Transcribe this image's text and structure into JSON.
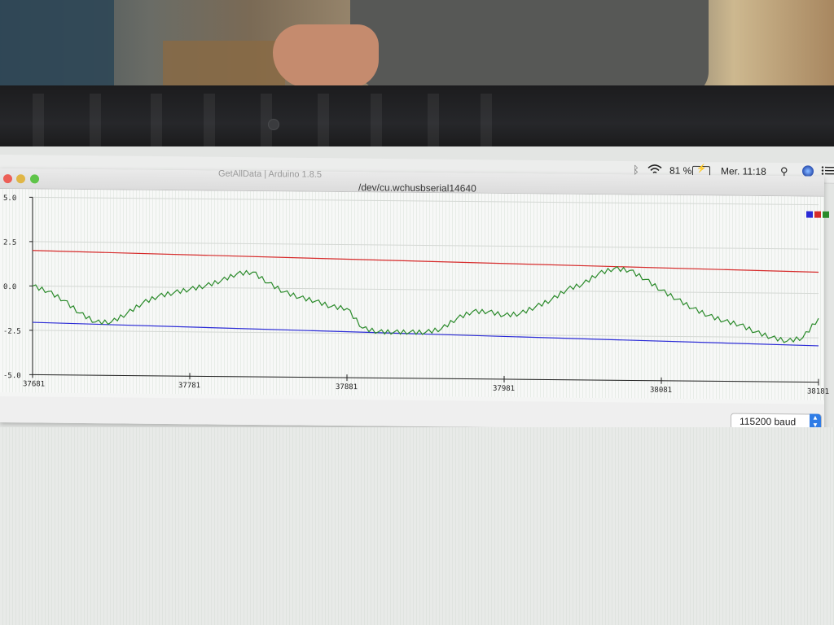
{
  "menubar": {
    "battery_percent": "81 %",
    "clock": "Mer. 11:18"
  },
  "window": {
    "background_title": "GetAllData | Arduino 1.8.5",
    "title": "/dev/cu.wchusbserial14640"
  },
  "baud": {
    "label": "115200 baud"
  },
  "colors": {
    "series_blue": "#2a2ad6",
    "series_red": "#d62a2a",
    "series_green": "#2a8a2a"
  },
  "chart_data": {
    "type": "line",
    "title": "",
    "xlabel": "",
    "ylabel": "",
    "ylim": [
      -5.0,
      5.0
    ],
    "xlim": [
      37681,
      38181
    ],
    "y_ticks": [
      "5.0",
      "2.5",
      "0.0",
      "-2.5",
      "-5.0"
    ],
    "x_ticks": [
      "37681",
      "37781",
      "37881",
      "37981",
      "38081",
      "38181"
    ],
    "grid": true,
    "legend": "top-right",
    "series": [
      {
        "color": "#2a2ad6",
        "x": [
          37681,
          38181
        ],
        "y": [
          -2.05,
          -2.95
        ]
      },
      {
        "color": "#d62a2a",
        "x": [
          37681,
          38181
        ],
        "y": [
          2.0,
          1.2
        ]
      },
      {
        "color": "#2a8a2a",
        "x": [
          37681,
          37691,
          37701,
          37711,
          37721,
          37731,
          37741,
          37751,
          37761,
          37771,
          37781,
          37791,
          37801,
          37811,
          37821,
          37831,
          37841,
          37851,
          37861,
          37871,
          37881,
          37891,
          37901,
          37911,
          37921,
          37931,
          37941,
          37951,
          37961,
          37971,
          37981,
          37991,
          38001,
          38011,
          38021,
          38031,
          38041,
          38051,
          38061,
          38071,
          38081,
          38091,
          38101,
          38111,
          38121,
          38131,
          38141,
          38151,
          38161,
          38171,
          38181
        ],
        "y": [
          0.0,
          -0.3,
          -0.8,
          -1.5,
          -2.0,
          -2.0,
          -1.5,
          -0.9,
          -0.5,
          -0.3,
          -0.1,
          0.1,
          0.4,
          0.8,
          0.9,
          0.3,
          -0.2,
          -0.5,
          -0.7,
          -1.0,
          -1.1,
          -2.2,
          -2.4,
          -2.4,
          -2.4,
          -2.4,
          -2.2,
          -1.6,
          -1.2,
          -1.2,
          -1.4,
          -1.3,
          -0.9,
          -0.5,
          0.1,
          0.4,
          1.0,
          1.3,
          1.2,
          0.7,
          0.1,
          -0.4,
          -0.9,
          -1.3,
          -1.6,
          -1.8,
          -2.2,
          -2.5,
          -2.7,
          -2.5,
          -1.4
        ]
      }
    ]
  }
}
